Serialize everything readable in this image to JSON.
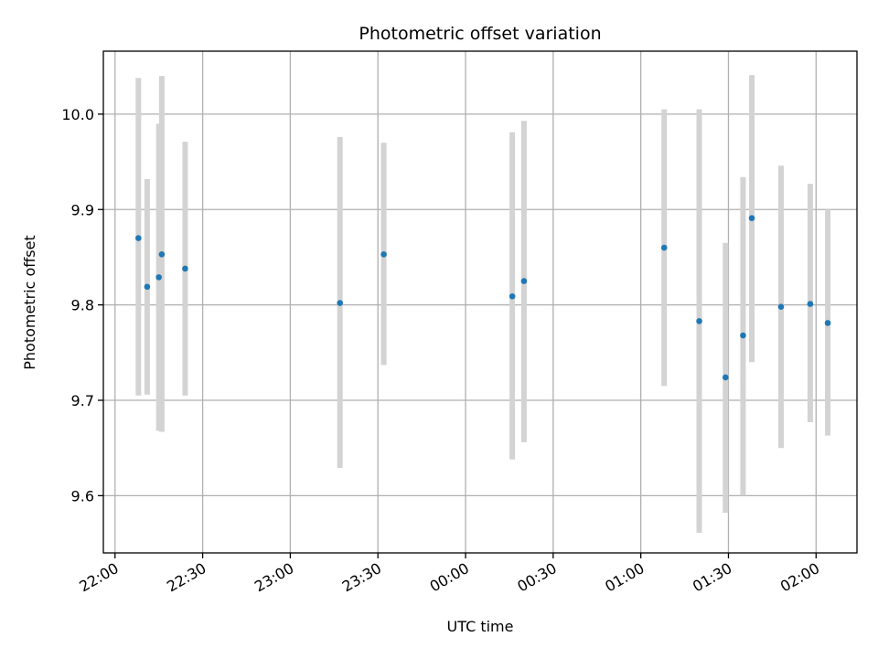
{
  "chart_data": {
    "type": "scatter",
    "title": "Photometric offset variation",
    "xlabel": "UTC time",
    "ylabel": "Photometric offset",
    "x_tick_labels": [
      "22:00",
      "22:30",
      "23:00",
      "23:30",
      "00:00",
      "00:30",
      "01:00",
      "01:30",
      "02:00"
    ],
    "y_tick_labels": [
      "9.6",
      "9.7",
      "9.8",
      "9.9",
      "10.0"
    ],
    "y_ticks": [
      9.6,
      9.7,
      9.8,
      9.9,
      10.0
    ],
    "xlim": [
      "21:56",
      "02:14"
    ],
    "ylim": [
      9.54,
      10.066
    ],
    "grid": true,
    "marker_color": "#1f77b4",
    "errorbar_color": "#d3d3d3",
    "points": [
      {
        "x": "22:08",
        "y": 9.87,
        "ymin": 9.705,
        "ymax": 10.038
      },
      {
        "x": "22:11",
        "y": 9.819,
        "ymin": 9.706,
        "ymax": 9.932
      },
      {
        "x": "22:15",
        "y": 9.829,
        "ymin": 9.668,
        "ymax": 9.99
      },
      {
        "x": "22:16",
        "y": 9.853,
        "ymin": 9.667,
        "ymax": 10.04
      },
      {
        "x": "22:24",
        "y": 9.838,
        "ymin": 9.705,
        "ymax": 9.971
      },
      {
        "x": "23:17",
        "y": 9.802,
        "ymin": 9.629,
        "ymax": 9.976
      },
      {
        "x": "23:32",
        "y": 9.853,
        "ymin": 9.737,
        "ymax": 9.97
      },
      {
        "x": "00:16",
        "y": 9.809,
        "ymin": 9.638,
        "ymax": 9.981
      },
      {
        "x": "00:20",
        "y": 9.825,
        "ymin": 9.656,
        "ymax": 9.993
      },
      {
        "x": "01:08",
        "y": 9.86,
        "ymin": 9.715,
        "ymax": 10.005
      },
      {
        "x": "01:20",
        "y": 9.783,
        "ymin": 9.561,
        "ymax": 10.005
      },
      {
        "x": "01:29",
        "y": 9.724,
        "ymin": 9.582,
        "ymax": 9.865
      },
      {
        "x": "01:35",
        "y": 9.768,
        "ymin": 9.6,
        "ymax": 9.934
      },
      {
        "x": "01:38",
        "y": 9.891,
        "ymin": 9.74,
        "ymax": 10.041
      },
      {
        "x": "01:48",
        "y": 9.798,
        "ymin": 9.65,
        "ymax": 9.946
      },
      {
        "x": "01:58",
        "y": 9.801,
        "ymin": 9.677,
        "ymax": 9.927
      },
      {
        "x": "02:04",
        "y": 9.781,
        "ymin": 9.663,
        "ymax": 9.9
      }
    ]
  }
}
